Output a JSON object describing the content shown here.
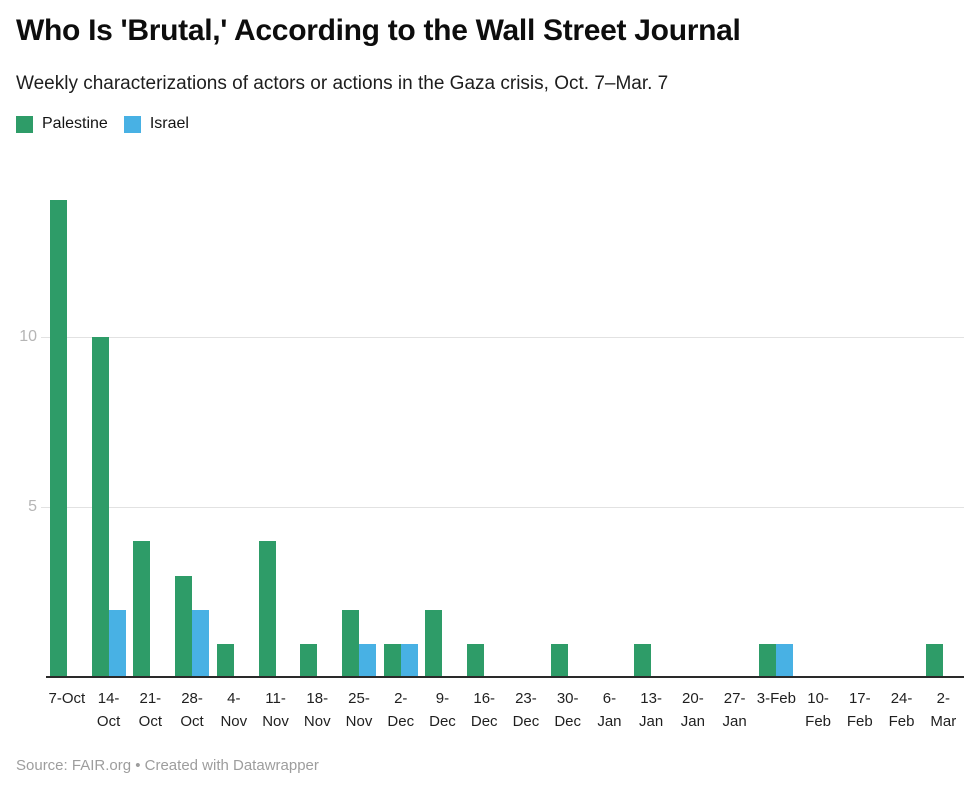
{
  "header": {
    "title": "Who Is 'Brutal,' According to the Wall Street Journal",
    "subtitle": "Weekly characterizations of actors or actions in the Gaza crisis, Oct. 7–Mar. 7"
  },
  "legend": [
    {
      "label": "Palestine",
      "color": "#2E9C68"
    },
    {
      "label": "Israel",
      "color": "#48B1E4"
    }
  ],
  "footer": {
    "text": "Source: FAIR.org • Created with Datawrapper"
  },
  "chart_data": {
    "type": "bar",
    "title": "Who Is 'Brutal,' According to the Wall Street Journal",
    "subtitle": "Weekly characterizations of actors or actions in the Gaza crisis, Oct. 7–Mar. 7",
    "xlabel": "",
    "ylabel": "",
    "ylim": [
      0,
      14
    ],
    "y_ticks": [
      5,
      10
    ],
    "grid": "horizontal-only",
    "legend_position": "top-left",
    "categories": [
      "7-Oct",
      "14-Oct",
      "21-Oct",
      "28-Oct",
      "4-Nov",
      "11-Nov",
      "18-Nov",
      "25-Nov",
      "2-Dec",
      "9-Dec",
      "16-Dec",
      "23-Dec",
      "30-Dec",
      "6-Jan",
      "13-Jan",
      "20-Jan",
      "27-Jan",
      "3-Feb",
      "10-Feb",
      "17-Feb",
      "24-Feb",
      "2-Mar"
    ],
    "category_label_lines": [
      [
        "7-Oct"
      ],
      [
        "14-",
        "Oct"
      ],
      [
        "21-",
        "Oct"
      ],
      [
        "28-",
        "Oct"
      ],
      [
        "4-",
        "Nov"
      ],
      [
        "11-",
        "Nov"
      ],
      [
        "18-",
        "Nov"
      ],
      [
        "25-",
        "Nov"
      ],
      [
        "2-",
        "Dec"
      ],
      [
        "9-",
        "Dec"
      ],
      [
        "16-",
        "Dec"
      ],
      [
        "23-",
        "Dec"
      ],
      [
        "30-",
        "Dec"
      ],
      [
        "6-",
        "Jan"
      ],
      [
        "13-",
        "Jan"
      ],
      [
        "20-",
        "Jan"
      ],
      [
        "27-",
        "Jan"
      ],
      [
        "3-Feb"
      ],
      [
        "10-",
        "Feb"
      ],
      [
        "17-",
        "Feb"
      ],
      [
        "24-",
        "Feb"
      ],
      [
        "2-",
        "Mar"
      ]
    ],
    "series": [
      {
        "name": "Palestine",
        "color": "#2E9C68",
        "values": [
          14,
          10,
          4,
          3,
          1,
          4,
          1,
          2,
          1,
          2,
          1,
          0,
          1,
          0,
          1,
          0,
          0,
          1,
          0,
          0,
          0,
          1
        ]
      },
      {
        "name": "Israel",
        "color": "#48B1E4",
        "values": [
          0,
          2,
          0,
          2,
          0,
          0,
          0,
          1,
          1,
          0,
          0,
          0,
          0,
          0,
          0,
          0,
          0,
          1,
          0,
          0,
          0,
          0
        ]
      }
    ]
  }
}
